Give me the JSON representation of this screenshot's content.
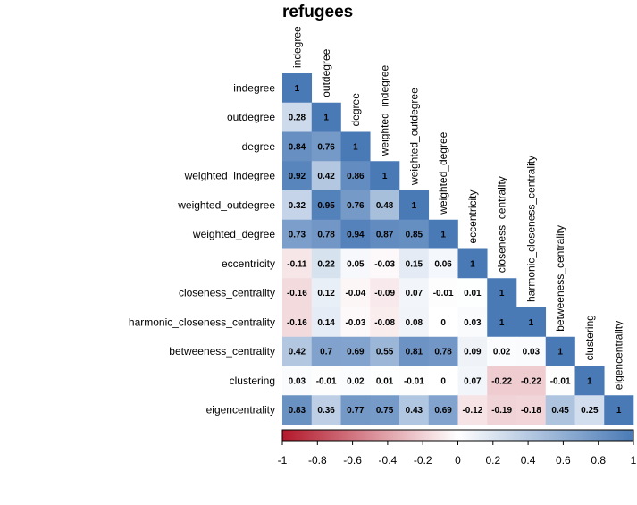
{
  "chart_data": {
    "type": "heatmap",
    "title": "refugees",
    "variables": [
      "indegree",
      "outdegree",
      "degree",
      "weighted_indegree",
      "weighted_outdegree",
      "weighted_degree",
      "eccentricity",
      "closeness_centrality",
      "harmonic_closeness_centrality",
      "betweeness_centrality",
      "clustering",
      "eigencentrality"
    ],
    "matrix_lower": [
      [
        1
      ],
      [
        0.28,
        1
      ],
      [
        0.84,
        0.76,
        1
      ],
      [
        0.92,
        0.42,
        0.86,
        1
      ],
      [
        0.32,
        0.95,
        0.76,
        0.48,
        1
      ],
      [
        0.73,
        0.78,
        0.94,
        0.87,
        0.85,
        1
      ],
      [
        -0.11,
        0.22,
        0.05,
        -0.03,
        0.15,
        0.06,
        1
      ],
      [
        -0.16,
        0.12,
        -0.04,
        -0.09,
        0.07,
        -0.01,
        0.01,
        1
      ],
      [
        -0.16,
        0.14,
        -0.03,
        -0.08,
        0.08,
        0,
        0.03,
        1,
        1
      ],
      [
        0.42,
        0.7,
        0.69,
        0.55,
        0.81,
        0.78,
        0.09,
        0.02,
        0.03,
        1
      ],
      [
        0.03,
        -0.01,
        0.02,
        0.01,
        -0.01,
        0,
        0.07,
        -0.22,
        -0.22,
        -0.01,
        1
      ],
      [
        0.83,
        0.36,
        0.77,
        0.75,
        0.43,
        0.69,
        -0.12,
        -0.19,
        -0.18,
        0.45,
        0.25,
        1
      ]
    ],
    "colorbar": {
      "ticks": [
        -1,
        -0.8,
        -0.6,
        -0.4,
        -0.2,
        0,
        0.2,
        0.4,
        0.6,
        0.8,
        1
      ],
      "range": [
        -1,
        1
      ]
    },
    "colors": {
      "negative": "#b2182b",
      "neutral": "#ffffff",
      "positive": "#4a7ab6"
    }
  }
}
